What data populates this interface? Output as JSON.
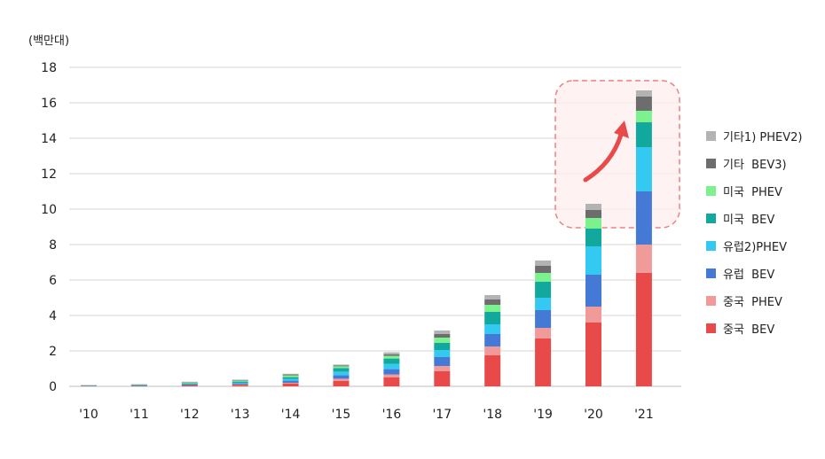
{
  "chart_data": {
    "type": "bar",
    "stacked": true,
    "unit_label": "(백만대)",
    "categories": [
      "'10",
      "'11",
      "'12",
      "'13",
      "'14",
      "'15",
      "'16",
      "'17",
      "'18",
      "'19",
      "'20",
      "'21"
    ],
    "ylim": [
      0,
      18
    ],
    "yticks": [
      0,
      2,
      4,
      6,
      8,
      10,
      12,
      14,
      16,
      18
    ],
    "grid": true,
    "legend_position": "right",
    "series": [
      {
        "name": "중국  BEV",
        "color": "#e84a4a",
        "values": [
          0.01,
          0.02,
          0.05,
          0.08,
          0.15,
          0.3,
          0.5,
          0.85,
          1.75,
          2.7,
          3.6,
          6.4
        ]
      },
      {
        "name": "중국  PHEV",
        "color": "#f09a9a",
        "values": [
          0.0,
          0.0,
          0.01,
          0.02,
          0.05,
          0.13,
          0.17,
          0.3,
          0.5,
          0.6,
          0.9,
          1.6
        ]
      },
      {
        "name": "유럽  BEV",
        "color": "#4479d6",
        "values": [
          0.01,
          0.02,
          0.04,
          0.06,
          0.12,
          0.2,
          0.3,
          0.5,
          0.7,
          1.0,
          1.8,
          3.0
        ]
      },
      {
        "name": "유럽2)PHEV",
        "color": "#33c9f0",
        "values": [
          0.0,
          0.01,
          0.02,
          0.04,
          0.1,
          0.2,
          0.3,
          0.4,
          0.55,
          0.7,
          1.6,
          2.5
        ]
      },
      {
        "name": "미국  BEV",
        "color": "#13a89e",
        "values": [
          0.01,
          0.02,
          0.05,
          0.07,
          0.1,
          0.2,
          0.3,
          0.4,
          0.7,
          0.9,
          1.0,
          1.4
        ]
      },
      {
        "name": "미국  PHEV",
        "color": "#7cf28e",
        "values": [
          0.0,
          0.01,
          0.04,
          0.05,
          0.1,
          0.1,
          0.15,
          0.3,
          0.4,
          0.5,
          0.6,
          0.65
        ]
      },
      {
        "name": "기타  BEV3)",
        "color": "#6d6d6d",
        "values": [
          0.0,
          0.0,
          0.01,
          0.02,
          0.05,
          0.05,
          0.08,
          0.2,
          0.3,
          0.4,
          0.45,
          0.8
        ]
      },
      {
        "name": "기타1) PHEV2)",
        "color": "#b3b3b3",
        "values": [
          0.01,
          0.01,
          0.01,
          0.02,
          0.03,
          0.05,
          0.12,
          0.2,
          0.25,
          0.3,
          0.35,
          0.35
        ]
      }
    ]
  }
}
